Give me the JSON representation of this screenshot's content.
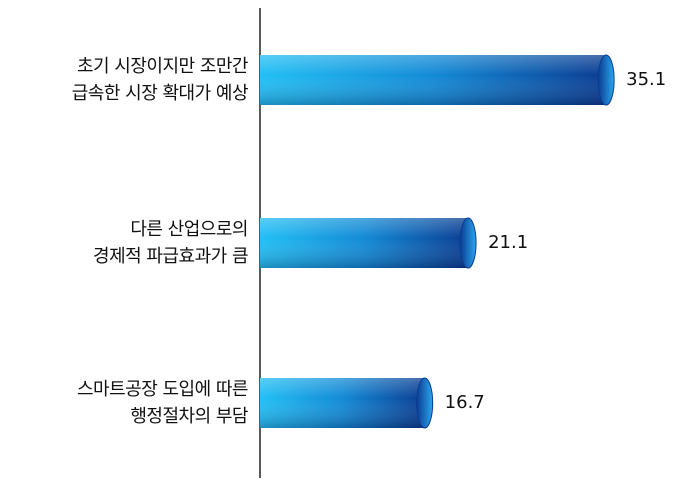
{
  "chart_data": {
    "type": "bar",
    "orientation": "horizontal",
    "categories": [
      "초기 시장이지만 조만간\n급속한 시장 확대가 예상",
      "다른 산업으로의\n경제적 파급효과가 큼",
      "스마트공장 도입에 따른\n행정절차의 부담"
    ],
    "values": [
      35.1,
      21.1,
      16.7
    ],
    "color": "#0d4fa8",
    "xlim": [
      0,
      36
    ]
  }
}
